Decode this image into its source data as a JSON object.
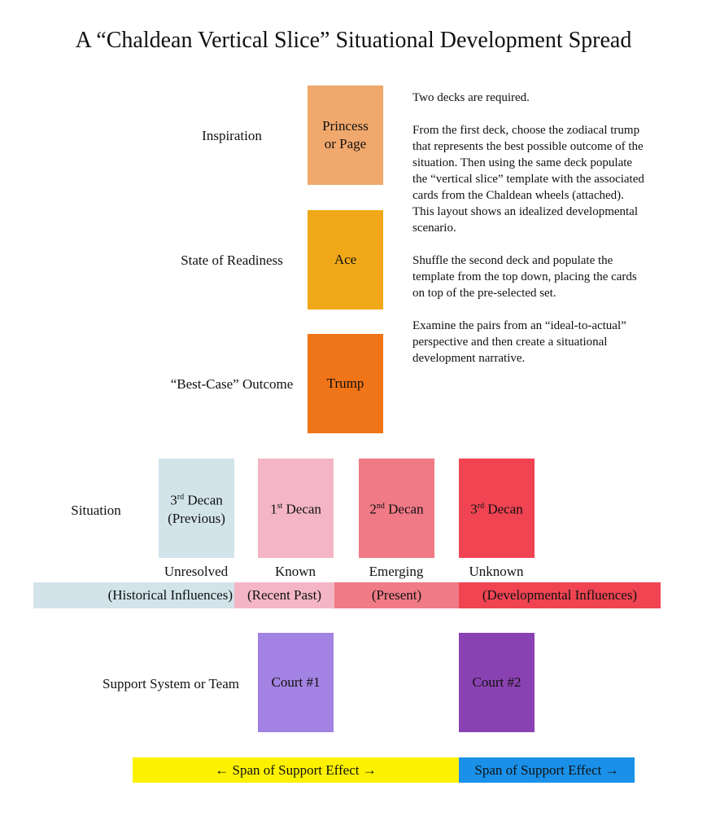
{
  "title": "A “Chaldean Vertical Slice” Situational Development Spread",
  "top_cards": [
    {
      "label": "Inspiration",
      "card": "Princess or Page",
      "color": "#f0a86c"
    },
    {
      "label": "State of Readiness",
      "card": "Ace",
      "color": "#f0a818"
    },
    {
      "label": "“Best-Case” Outcome",
      "card": "Trump",
      "color": "#f07418"
    }
  ],
  "instructions": [
    "Two decks are required.",
    "From the first deck, choose the zodiacal trump that represents the best possible outcome of the situation. Then using the same deck populate the “vertical slice” template with the associated cards from the Chaldean wheels (attached). This layout shows an idealized developmental scenario.",
    "Shuffle the second deck and populate the template from the top down, placing the cards on top of the pre-selected set.",
    "Examine the pairs from an “ideal-to-actual” perspective and then create a situational development narrative."
  ],
  "situation": {
    "label": "Situation",
    "cards": [
      {
        "number": "3",
        "suffix": "rd",
        "word": "Decan",
        "note": "(Previous)",
        "state": "Unresolved",
        "band": "(Historical Influences)",
        "color": "#d2e4ea"
      },
      {
        "number": "1",
        "suffix": "st",
        "word": "Decan",
        "state": "Known",
        "band": "(Recent Past)",
        "color": "#f4b6c6"
      },
      {
        "number": "2",
        "suffix": "nd",
        "word": "Decan",
        "state": "Emerging",
        "band": "(Present)",
        "color": "#f07a86"
      },
      {
        "number": "3",
        "suffix": "rd",
        "word": "Decan",
        "state": "Unknown",
        "band": "(Developmental Influences)",
        "color": "#f04452"
      }
    ]
  },
  "support": {
    "label": "Support System or Team",
    "cards": [
      {
        "card": "Court #1",
        "color": "#a282e2"
      },
      {
        "card": "Court #2",
        "color": "#8a42b2"
      }
    ],
    "spans": [
      {
        "text": "← Span of Support Effect →",
        "color": "#fcf200"
      },
      {
        "text": "Span of Support Effect →",
        "color": "#1a90e8"
      }
    ]
  }
}
